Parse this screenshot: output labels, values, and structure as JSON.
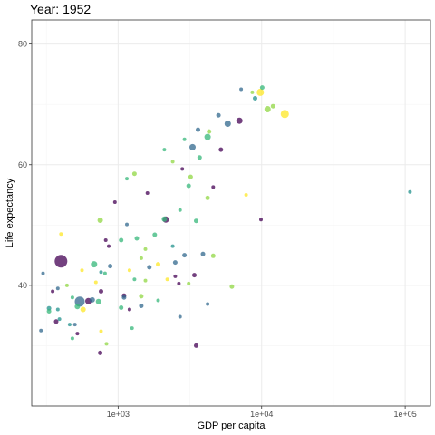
{
  "chart_data": {
    "type": "scatter",
    "title": "Year: 1952",
    "xlabel": "GDP per capita",
    "ylabel": "Life expectancy",
    "x_scale": "log10",
    "x_range": [
      250,
      150000
    ],
    "y_range": [
      20,
      84
    ],
    "x_ticks": [
      {
        "value": 1000,
        "label": "1e+03"
      },
      {
        "value": 10000,
        "label": "1e+04"
      },
      {
        "value": 100000,
        "label": "1e+05"
      }
    ],
    "y_ticks": [
      {
        "value": 40,
        "label": "40"
      },
      {
        "value": 60,
        "label": "60"
      },
      {
        "value": 80,
        "label": "80"
      }
    ],
    "grid": true,
    "legend": "none",
    "colors": {
      "purple": "#440154",
      "blue": "#31688e",
      "teal": "#21918c",
      "green": "#35b779",
      "lime": "#90d743",
      "yellow": "#fde725"
    },
    "points": [
      {
        "x": 400,
        "y": 44.0,
        "size": 14,
        "color": "purple"
      },
      {
        "x": 540,
        "y": 37.3,
        "size": 11,
        "color": "blue"
      },
      {
        "x": 680,
        "y": 43.5,
        "size": 7,
        "color": "green"
      },
      {
        "x": 620,
        "y": 37.4,
        "size": 7,
        "color": "purple"
      },
      {
        "x": 2150,
        "y": 50.9,
        "size": 7,
        "color": "purple"
      },
      {
        "x": 3300,
        "y": 62.9,
        "size": 7,
        "color": "blue"
      },
      {
        "x": 14500,
        "y": 68.4,
        "size": 9,
        "color": "yellow"
      },
      {
        "x": 9800,
        "y": 72.0,
        "size": 8,
        "color": "yellow"
      },
      {
        "x": 7000,
        "y": 67.3,
        "size": 7,
        "color": "purple"
      },
      {
        "x": 11000,
        "y": 69.2,
        "size": 7,
        "color": "lime"
      },
      {
        "x": 4200,
        "y": 64.6,
        "size": 7,
        "color": "green"
      },
      {
        "x": 5800,
        "y": 66.8,
        "size": 7,
        "color": "blue"
      },
      {
        "x": 108000,
        "y": 55.5,
        "size": 4,
        "color": "teal"
      },
      {
        "x": 12000,
        "y": 69.7,
        "size": 5,
        "color": "lime"
      },
      {
        "x": 7200,
        "y": 72.5,
        "size": 4,
        "color": "blue"
      },
      {
        "x": 9000,
        "y": 71.0,
        "size": 5,
        "color": "teal"
      },
      {
        "x": 10100,
        "y": 72.8,
        "size": 5,
        "color": "green"
      },
      {
        "x": 8600,
        "y": 72.0,
        "size": 4,
        "color": "lime"
      },
      {
        "x": 5000,
        "y": 68.2,
        "size": 5,
        "color": "blue"
      },
      {
        "x": 4300,
        "y": 65.5,
        "size": 5,
        "color": "lime"
      },
      {
        "x": 3600,
        "y": 65.8,
        "size": 5,
        "color": "blue"
      },
      {
        "x": 2900,
        "y": 64.2,
        "size": 4,
        "color": "green"
      },
      {
        "x": 5200,
        "y": 62.5,
        "size": 5,
        "color": "purple"
      },
      {
        "x": 3700,
        "y": 61.2,
        "size": 5,
        "color": "green"
      },
      {
        "x": 2400,
        "y": 60.5,
        "size": 4,
        "color": "lime"
      },
      {
        "x": 2100,
        "y": 62.5,
        "size": 4,
        "color": "green"
      },
      {
        "x": 3200,
        "y": 58.0,
        "size": 5,
        "color": "lime"
      },
      {
        "x": 3100,
        "y": 56.5,
        "size": 5,
        "color": "green"
      },
      {
        "x": 1600,
        "y": 55.3,
        "size": 4,
        "color": "purple"
      },
      {
        "x": 1300,
        "y": 58.5,
        "size": 5,
        "color": "lime"
      },
      {
        "x": 1150,
        "y": 57.7,
        "size": 4,
        "color": "green"
      },
      {
        "x": 2800,
        "y": 59.3,
        "size": 4,
        "color": "purple"
      },
      {
        "x": 4200,
        "y": 54.5,
        "size": 5,
        "color": "lime"
      },
      {
        "x": 4600,
        "y": 56.3,
        "size": 4,
        "color": "purple"
      },
      {
        "x": 7800,
        "y": 55.0,
        "size": 4,
        "color": "yellow"
      },
      {
        "x": 2700,
        "y": 52.5,
        "size": 4,
        "color": "green"
      },
      {
        "x": 2100,
        "y": 51.0,
        "size": 6,
        "color": "green"
      },
      {
        "x": 3500,
        "y": 50.7,
        "size": 5,
        "color": "green"
      },
      {
        "x": 9900,
        "y": 50.9,
        "size": 4,
        "color": "purple"
      },
      {
        "x": 1800,
        "y": 48.4,
        "size": 5,
        "color": "green"
      },
      {
        "x": 1150,
        "y": 50.1,
        "size": 4,
        "color": "blue"
      },
      {
        "x": 950,
        "y": 53.8,
        "size": 4,
        "color": "purple"
      },
      {
        "x": 750,
        "y": 50.8,
        "size": 6,
        "color": "lime"
      },
      {
        "x": 1050,
        "y": 47.5,
        "size": 5,
        "color": "green"
      },
      {
        "x": 1350,
        "y": 47.8,
        "size": 5,
        "color": "green"
      },
      {
        "x": 820,
        "y": 47.5,
        "size": 4,
        "color": "purple"
      },
      {
        "x": 860,
        "y": 46.5,
        "size": 4,
        "color": "purple"
      },
      {
        "x": 1550,
        "y": 46.0,
        "size": 4,
        "color": "lime"
      },
      {
        "x": 2400,
        "y": 46.5,
        "size": 4,
        "color": "teal"
      },
      {
        "x": 2900,
        "y": 45.0,
        "size": 5,
        "color": "blue"
      },
      {
        "x": 3900,
        "y": 45.2,
        "size": 5,
        "color": "blue"
      },
      {
        "x": 4600,
        "y": 44.9,
        "size": 5,
        "color": "lime"
      },
      {
        "x": 2500,
        "y": 43.8,
        "size": 5,
        "color": "blue"
      },
      {
        "x": 1900,
        "y": 43.5,
        "size": 5,
        "color": "yellow"
      },
      {
        "x": 1650,
        "y": 43.0,
        "size": 5,
        "color": "blue"
      },
      {
        "x": 1450,
        "y": 44.5,
        "size": 4,
        "color": "lime"
      },
      {
        "x": 880,
        "y": 43.2,
        "size": 5,
        "color": "blue"
      },
      {
        "x": 810,
        "y": 42.0,
        "size": 4,
        "color": "green"
      },
      {
        "x": 760,
        "y": 42.2,
        "size": 4,
        "color": "teal"
      },
      {
        "x": 560,
        "y": 42.5,
        "size": 4,
        "color": "yellow"
      },
      {
        "x": 300,
        "y": 42.0,
        "size": 4,
        "color": "blue"
      },
      {
        "x": 1200,
        "y": 42.5,
        "size": 4,
        "color": "yellow"
      },
      {
        "x": 1300,
        "y": 41.0,
        "size": 4,
        "color": "green"
      },
      {
        "x": 1550,
        "y": 40.8,
        "size": 4,
        "color": "lime"
      },
      {
        "x": 2200,
        "y": 41.0,
        "size": 4,
        "color": "yellow"
      },
      {
        "x": 2500,
        "y": 41.5,
        "size": 4,
        "color": "purple"
      },
      {
        "x": 3100,
        "y": 40.3,
        "size": 4,
        "color": "lime"
      },
      {
        "x": 3400,
        "y": 41.7,
        "size": 5,
        "color": "purple"
      },
      {
        "x": 2650,
        "y": 40.3,
        "size": 4,
        "color": "purple"
      },
      {
        "x": 6200,
        "y": 39.8,
        "size": 5,
        "color": "lime"
      },
      {
        "x": 440,
        "y": 40.0,
        "size": 4,
        "color": "lime"
      },
      {
        "x": 350,
        "y": 39.0,
        "size": 4,
        "color": "purple"
      },
      {
        "x": 380,
        "y": 39.5,
        "size": 4,
        "color": "blue"
      },
      {
        "x": 700,
        "y": 40.5,
        "size": 4,
        "color": "yellow"
      },
      {
        "x": 760,
        "y": 39.0,
        "size": 5,
        "color": "purple"
      },
      {
        "x": 1100,
        "y": 38.3,
        "size": 5,
        "color": "purple"
      },
      {
        "x": 1100,
        "y": 38.0,
        "size": 5,
        "color": "blue"
      },
      {
        "x": 1450,
        "y": 38.2,
        "size": 5,
        "color": "lime"
      },
      {
        "x": 1900,
        "y": 37.5,
        "size": 4,
        "color": "green"
      },
      {
        "x": 660,
        "y": 37.6,
        "size": 6,
        "color": "blue"
      },
      {
        "x": 730,
        "y": 37.3,
        "size": 6,
        "color": "green"
      },
      {
        "x": 480,
        "y": 38.0,
        "size": 4,
        "color": "green"
      },
      {
        "x": 520,
        "y": 36.5,
        "size": 6,
        "color": "green"
      },
      {
        "x": 570,
        "y": 36.0,
        "size": 6,
        "color": "yellow"
      },
      {
        "x": 1050,
        "y": 36.3,
        "size": 5,
        "color": "green"
      },
      {
        "x": 1200,
        "y": 36.0,
        "size": 4,
        "color": "purple"
      },
      {
        "x": 1450,
        "y": 36.6,
        "size": 5,
        "color": "blue"
      },
      {
        "x": 4200,
        "y": 36.9,
        "size": 4,
        "color": "blue"
      },
      {
        "x": 330,
        "y": 36.2,
        "size": 5,
        "color": "teal"
      },
      {
        "x": 330,
        "y": 35.7,
        "size": 5,
        "color": "green"
      },
      {
        "x": 380,
        "y": 36.0,
        "size": 4,
        "color": "teal"
      },
      {
        "x": 370,
        "y": 34.0,
        "size": 5,
        "color": "purple"
      },
      {
        "x": 390,
        "y": 34.4,
        "size": 4,
        "color": "teal"
      },
      {
        "x": 460,
        "y": 33.5,
        "size": 4,
        "color": "teal"
      },
      {
        "x": 500,
        "y": 33.5,
        "size": 4,
        "color": "blue"
      },
      {
        "x": 2700,
        "y": 34.8,
        "size": 4,
        "color": "blue"
      },
      {
        "x": 290,
        "y": 32.5,
        "size": 4,
        "color": "blue"
      },
      {
        "x": 520,
        "y": 32.0,
        "size": 4,
        "color": "purple"
      },
      {
        "x": 760,
        "y": 32.4,
        "size": 4,
        "color": "yellow"
      },
      {
        "x": 1250,
        "y": 32.9,
        "size": 4,
        "color": "green"
      },
      {
        "x": 480,
        "y": 31.2,
        "size": 4,
        "color": "green"
      },
      {
        "x": 830,
        "y": 30.3,
        "size": 4,
        "color": "lime"
      },
      {
        "x": 3500,
        "y": 30.0,
        "size": 5,
        "color": "purple"
      },
      {
        "x": 750,
        "y": 28.8,
        "size": 5,
        "color": "purple"
      },
      {
        "x": 400,
        "y": 48.5,
        "size": 4,
        "color": "yellow"
      }
    ]
  }
}
